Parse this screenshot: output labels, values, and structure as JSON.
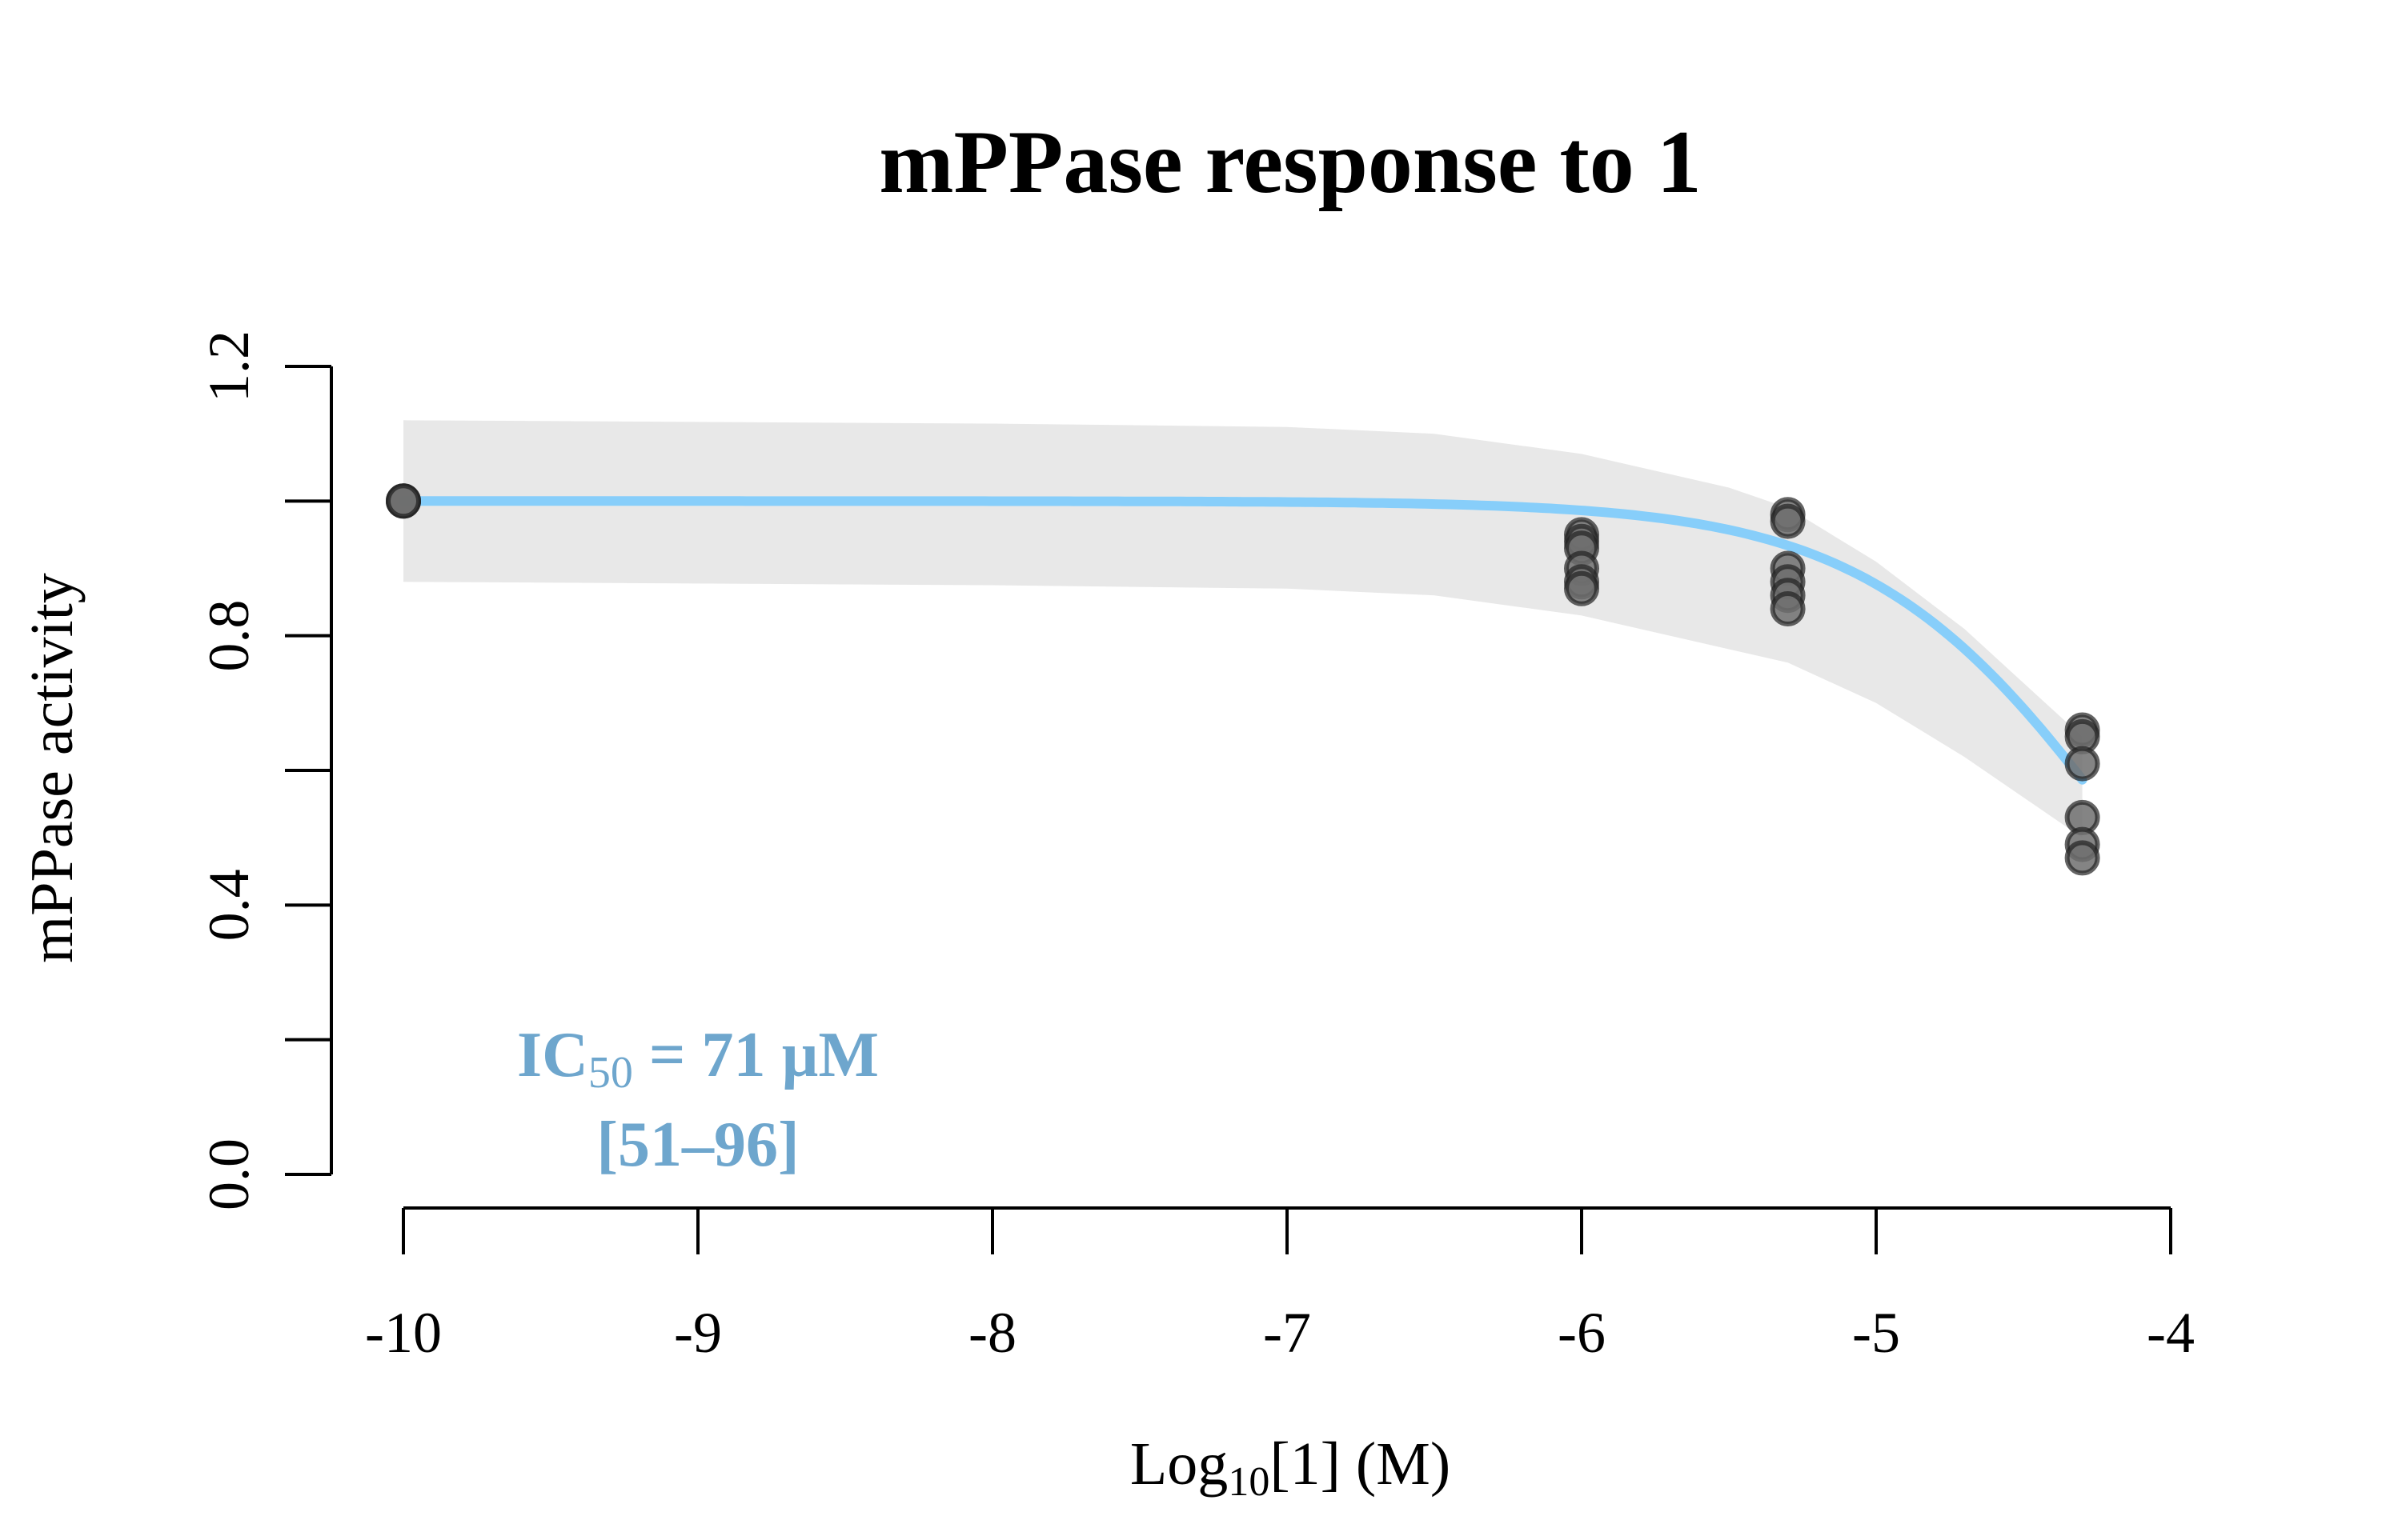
{
  "chart_data": {
    "type": "scatter",
    "title": "mPPase response to 1",
    "xlabel": {
      "prefix": "Log",
      "sub": "10",
      "suffix": "[1] (M)"
    },
    "ylabel": "mPPase activity",
    "xlim": [
      -10,
      -4
    ],
    "ylim": [
      0,
      1.2
    ],
    "x_ticks": [
      -10,
      -9,
      -8,
      -7,
      -6,
      -5,
      -4
    ],
    "x_tick_labels": [
      "-10",
      "-9",
      "-8",
      "-7",
      "-6",
      "-5",
      "-4"
    ],
    "y_ticks": [
      0,
      0.2,
      0.4,
      0.6,
      0.8,
      1.0,
      1.2
    ],
    "y_tick_labels": [
      "0.0",
      "",
      "0.4",
      "",
      "0.8",
      "",
      "1.2"
    ],
    "grid": false,
    "points": [
      {
        "x": -10,
        "y": 1.0
      },
      {
        "x": -10,
        "y": 1.0
      },
      {
        "x": -10,
        "y": 1.0
      },
      {
        "x": -6,
        "y": 0.95
      },
      {
        "x": -6,
        "y": 0.94
      },
      {
        "x": -6,
        "y": 0.93
      },
      {
        "x": -6,
        "y": 0.9
      },
      {
        "x": -6,
        "y": 0.88
      },
      {
        "x": -6,
        "y": 0.87
      },
      {
        "x": -5.3,
        "y": 0.98
      },
      {
        "x": -5.3,
        "y": 0.97
      },
      {
        "x": -5.3,
        "y": 0.9
      },
      {
        "x": -5.3,
        "y": 0.88
      },
      {
        "x": -5.3,
        "y": 0.86
      },
      {
        "x": -5.3,
        "y": 0.84
      },
      {
        "x": -4.3,
        "y": 0.66
      },
      {
        "x": -4.3,
        "y": 0.65
      },
      {
        "x": -4.3,
        "y": 0.61
      },
      {
        "x": -4.3,
        "y": 0.53
      },
      {
        "x": -4.3,
        "y": 0.49
      },
      {
        "x": -4.3,
        "y": 0.47
      }
    ],
    "fit": {
      "model": "1 / (1 + 10^(x - logIC50))",
      "logIC50": -4.149,
      "x_range": [
        -10,
        -4.3
      ],
      "color": "#87CEFA",
      "ci_band": {
        "x": [
          -10,
          -8,
          -7,
          -6.5,
          -6,
          -5.5,
          -5.3,
          -5,
          -4.7,
          -4.5,
          -4.3
        ],
        "upper": [
          1.12,
          1.115,
          1.11,
          1.1,
          1.07,
          1.02,
          0.99,
          0.91,
          0.81,
          0.73,
          0.65
        ],
        "lower": [
          0.88,
          0.875,
          0.87,
          0.86,
          0.83,
          0.78,
          0.76,
          0.7,
          0.62,
          0.56,
          0.5
        ],
        "color": "#e8e8e8"
      }
    },
    "annotation": {
      "line1": {
        "prefix": "IC",
        "sub": "50",
        "suffix": " = 71 µM"
      },
      "line2": "[51–96]",
      "color": "#6ea6cd"
    },
    "point_color": "#6e6e6e",
    "point_edge": "#222222"
  }
}
